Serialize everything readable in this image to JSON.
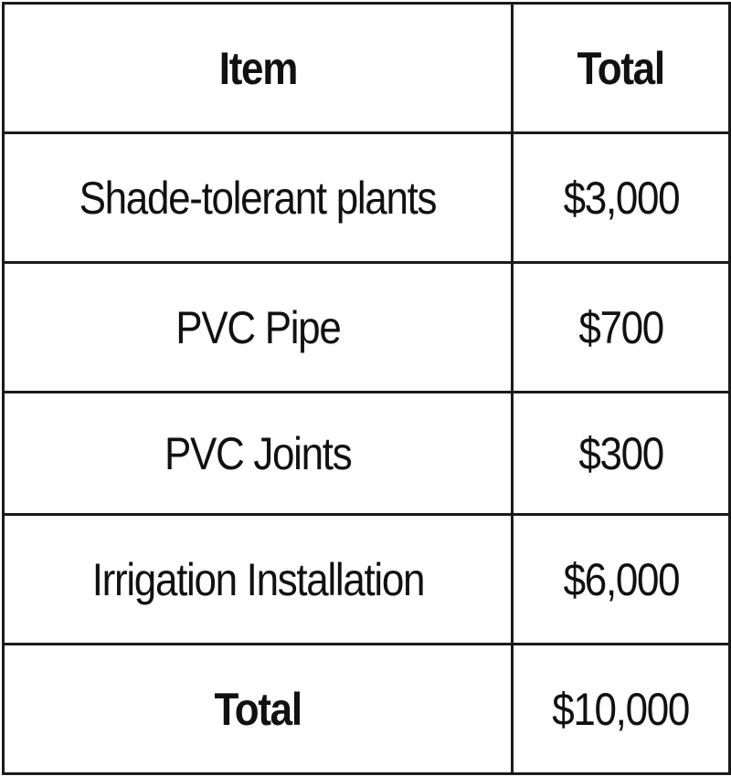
{
  "table": {
    "headers": [
      "Item",
      "Total"
    ],
    "rows": [
      {
        "item": "Shade-tolerant plants",
        "total": "$3,000"
      },
      {
        "item": "PVC Pipe",
        "total": "$700"
      },
      {
        "item": "PVC Joints",
        "total": "$300"
      },
      {
        "item": "Irrigation Installation",
        "total": "$6,000"
      }
    ],
    "footer": {
      "item": "Total",
      "total": "$10,000"
    }
  }
}
